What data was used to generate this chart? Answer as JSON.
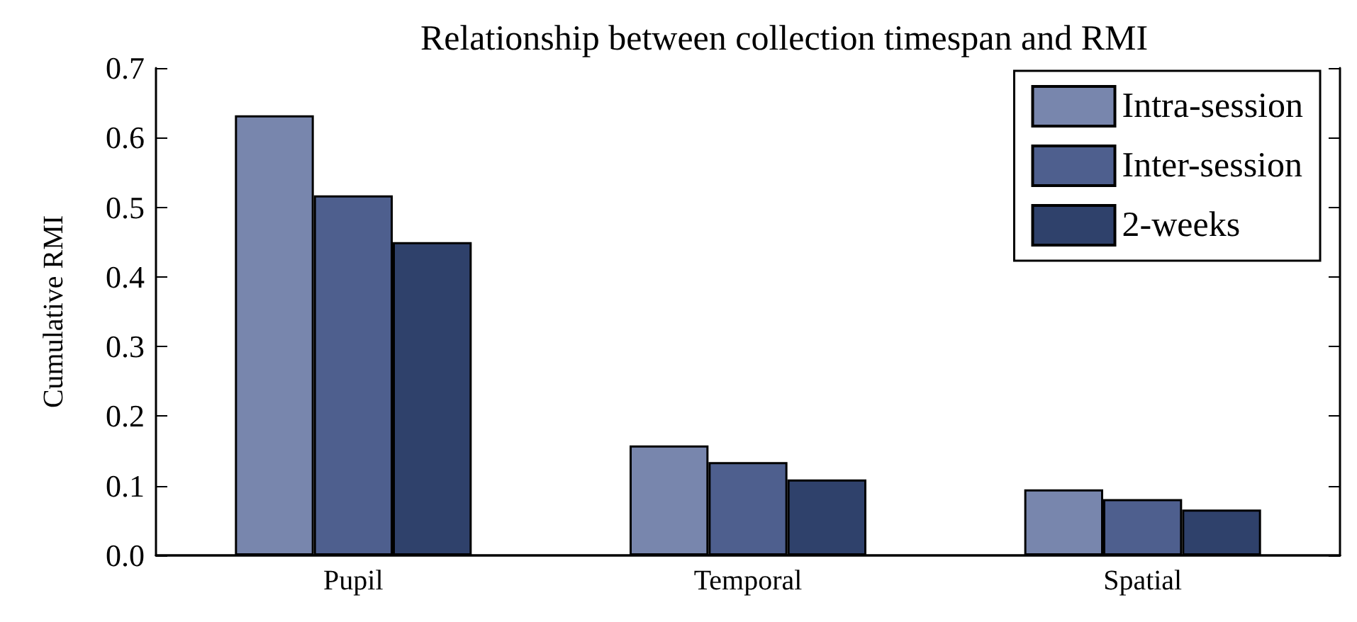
{
  "chart_data": {
    "type": "bar",
    "title": "Relationship between collection timespan and RMI",
    "ylabel": "Cumulative RMI",
    "categories": [
      "Pupil",
      "Temporal",
      "Spatial"
    ],
    "series": [
      {
        "name": "Intra-session",
        "color": "#7886ad",
        "values": [
          0.632,
          0.158,
          0.095
        ]
      },
      {
        "name": "Inter-session",
        "color": "#4e5f8e",
        "values": [
          0.517,
          0.134,
          0.081
        ]
      },
      {
        "name": "2-weeks",
        "color": "#2f416b",
        "values": [
          0.45,
          0.109,
          0.066
        ]
      }
    ],
    "ylim": [
      0,
      0.7
    ],
    "yticks": [
      {
        "value": 0,
        "label": "0.0"
      },
      0.1,
      0.2,
      0.3,
      0.4,
      0.5,
      0.6,
      0.7
    ],
    "grid": false,
    "legend": "top right"
  }
}
